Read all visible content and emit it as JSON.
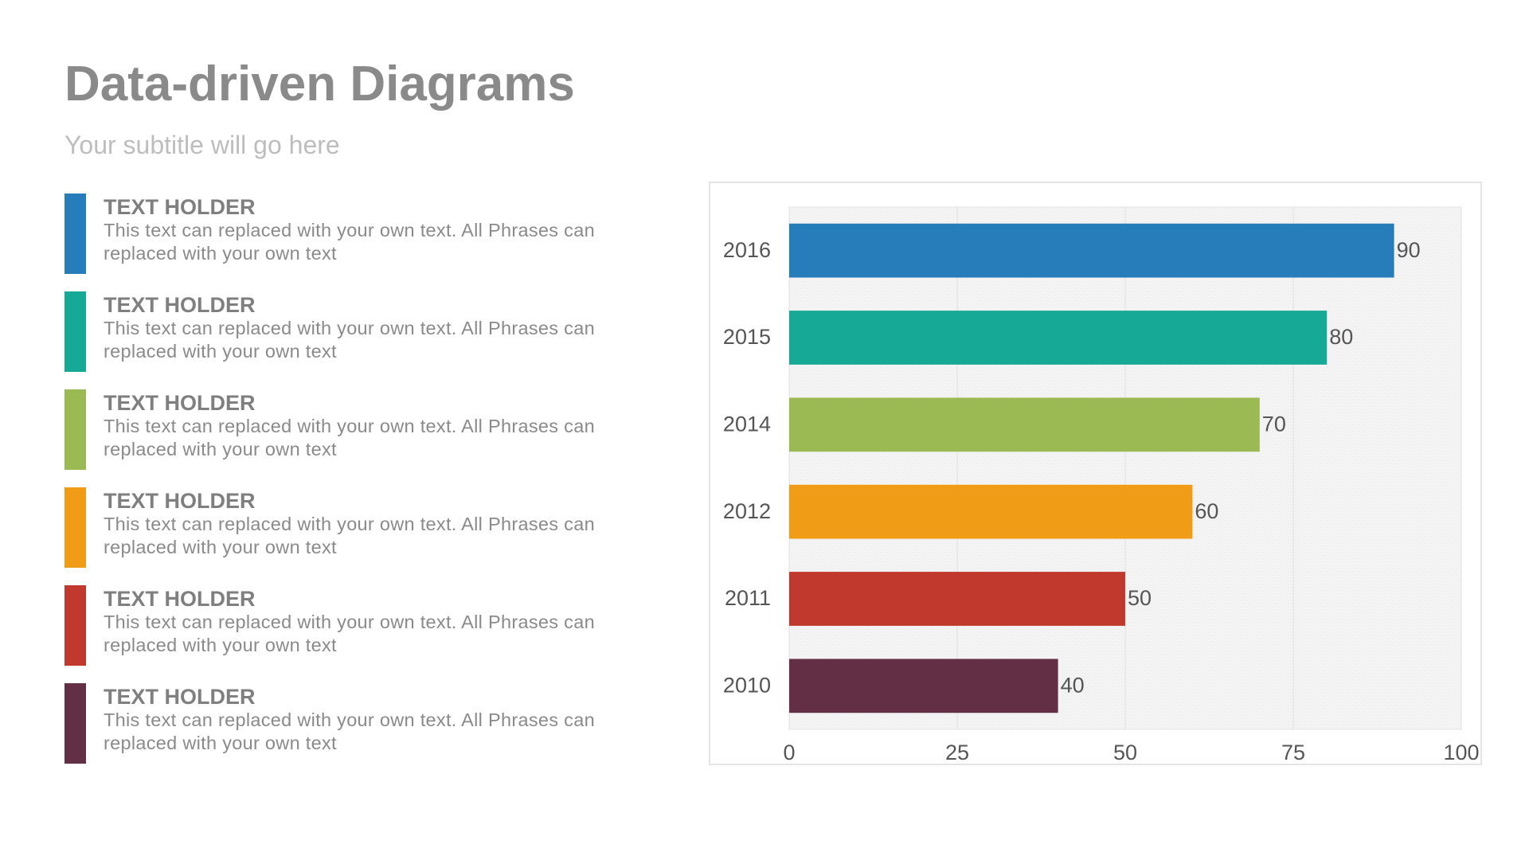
{
  "title": "Data-driven Diagrams",
  "subtitle": "Your subtitle will go here",
  "text_blocks": [
    {
      "heading": "TEXT HOLDER",
      "text": "This text can replaced with your own text. All Phrases can replaced with your own text"
    },
    {
      "heading": "TEXT HOLDER",
      "text": "This text can replaced with your own text. All Phrases can replaced with your own text"
    },
    {
      "heading": "TEXT HOLDER",
      "text": "This text can replaced with your own text. All Phrases can replaced with your own text"
    },
    {
      "heading": "TEXT HOLDER",
      "text": "This text can replaced with your own text. All Phrases can replaced with your own text"
    },
    {
      "heading": "TEXT HOLDER",
      "text": "This text can replaced with your own text. All Phrases can replaced with your own text"
    },
    {
      "heading": "TEXT HOLDER",
      "text": "This text can replaced with your own text. All Phrases can replaced with your own text"
    }
  ],
  "chart_data": {
    "type": "bar",
    "orientation": "horizontal",
    "categories": [
      "2016",
      "2015",
      "2014",
      "2012",
      "2011",
      "2010"
    ],
    "values": [
      90,
      80,
      70,
      60,
      50,
      40
    ],
    "colors": [
      "#267dba",
      "#16a995",
      "#9cba54",
      "#f09c17",
      "#c0392c",
      "#632f45"
    ],
    "xlim": [
      0,
      100
    ],
    "xticks": [
      0,
      25,
      50,
      75,
      100
    ],
    "grid": true
  }
}
